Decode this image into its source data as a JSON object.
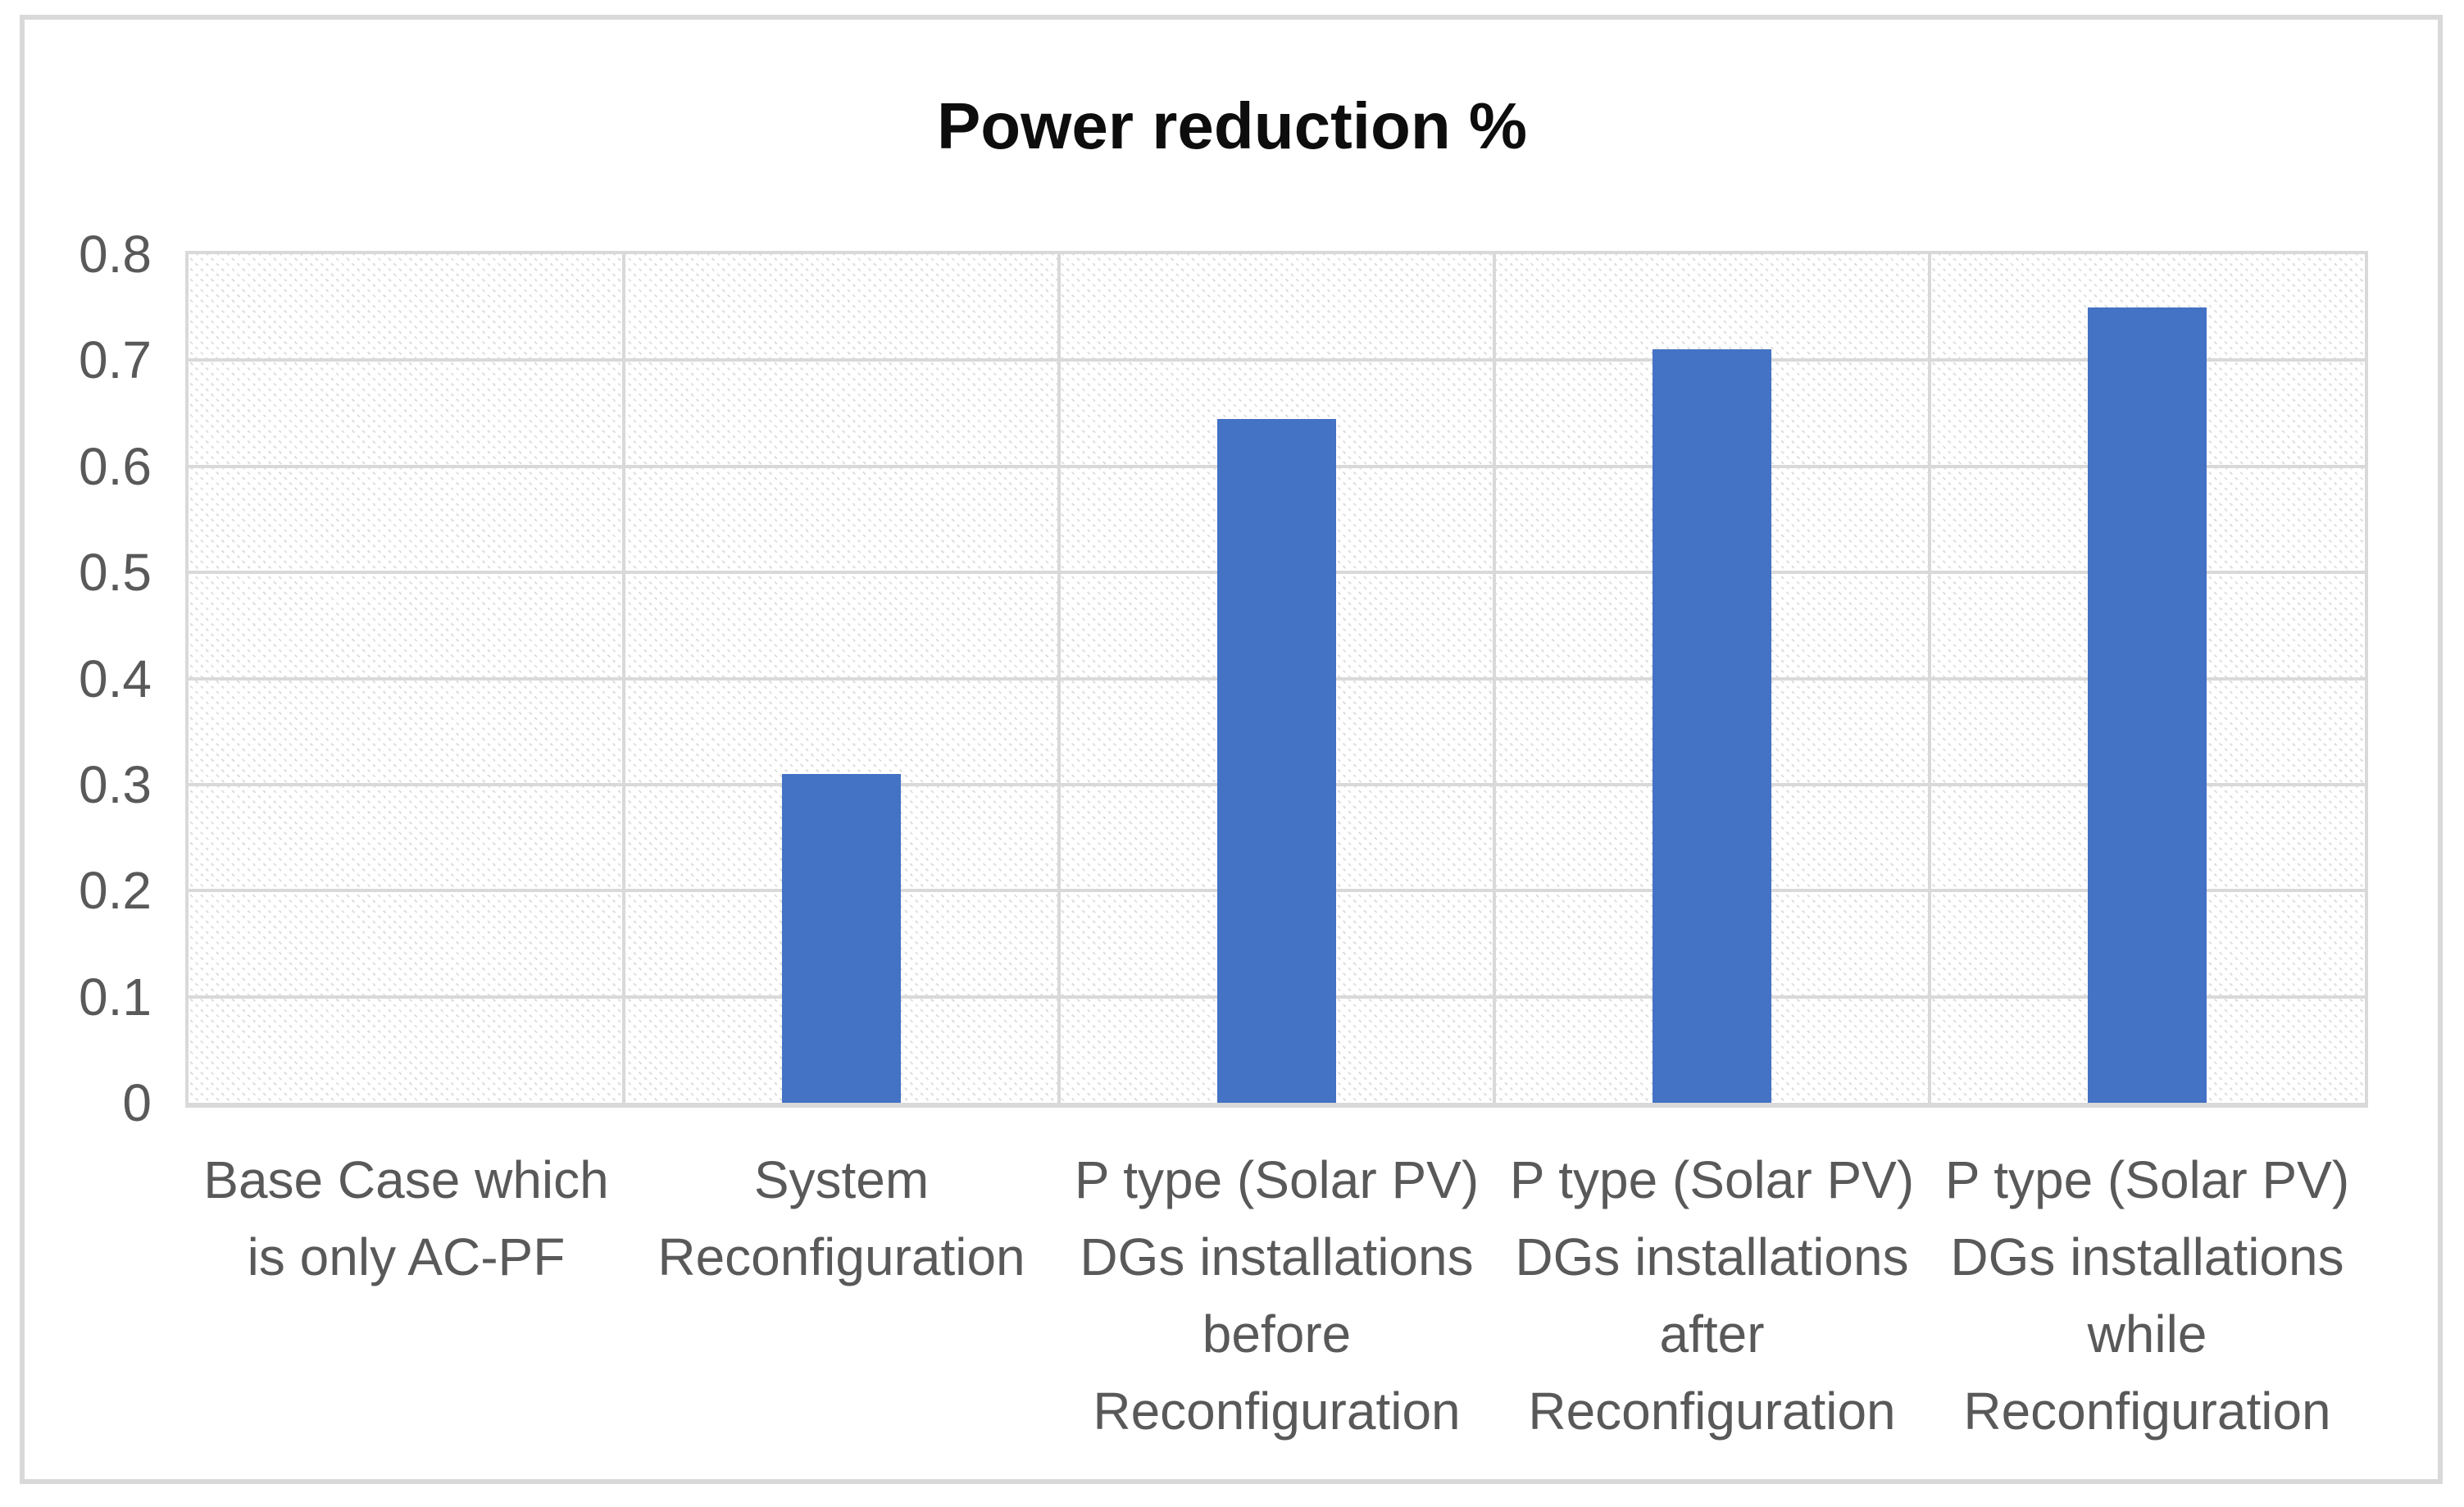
{
  "figure": {
    "frame_border_color": "#D9D9D9",
    "background_color": "#FFFFFF"
  },
  "chart_data": {
    "type": "bar",
    "title": "Power reduction %",
    "categories": [
      "Base Case which\nis only AC-PF",
      "System\nReconfiguration",
      "P type (Solar PV)\nDGs installations\nbefore\nReconfiguration",
      "P type (Solar PV)\nDGs installations\nafter\nReconfiguration",
      "P type (Solar PV)\nDGs installations\nwhile\nReconfiguration"
    ],
    "values": [
      0,
      0.31,
      0.645,
      0.71,
      0.75
    ],
    "xlabel": "",
    "ylabel": "",
    "ylim": [
      0,
      0.8
    ],
    "ytick_labels": [
      "0",
      "0.1",
      "0.2",
      "0.3",
      "0.4",
      "0.5",
      "0.6",
      "0.7",
      "0.8"
    ],
    "grid": true,
    "legend": false,
    "bar_color": "#4472C4",
    "gridline_color": "#D9D9D9",
    "hatch_color": "#DEDEDE",
    "axis_label_color": "#595959",
    "title_color": "#0D0D0D"
  }
}
